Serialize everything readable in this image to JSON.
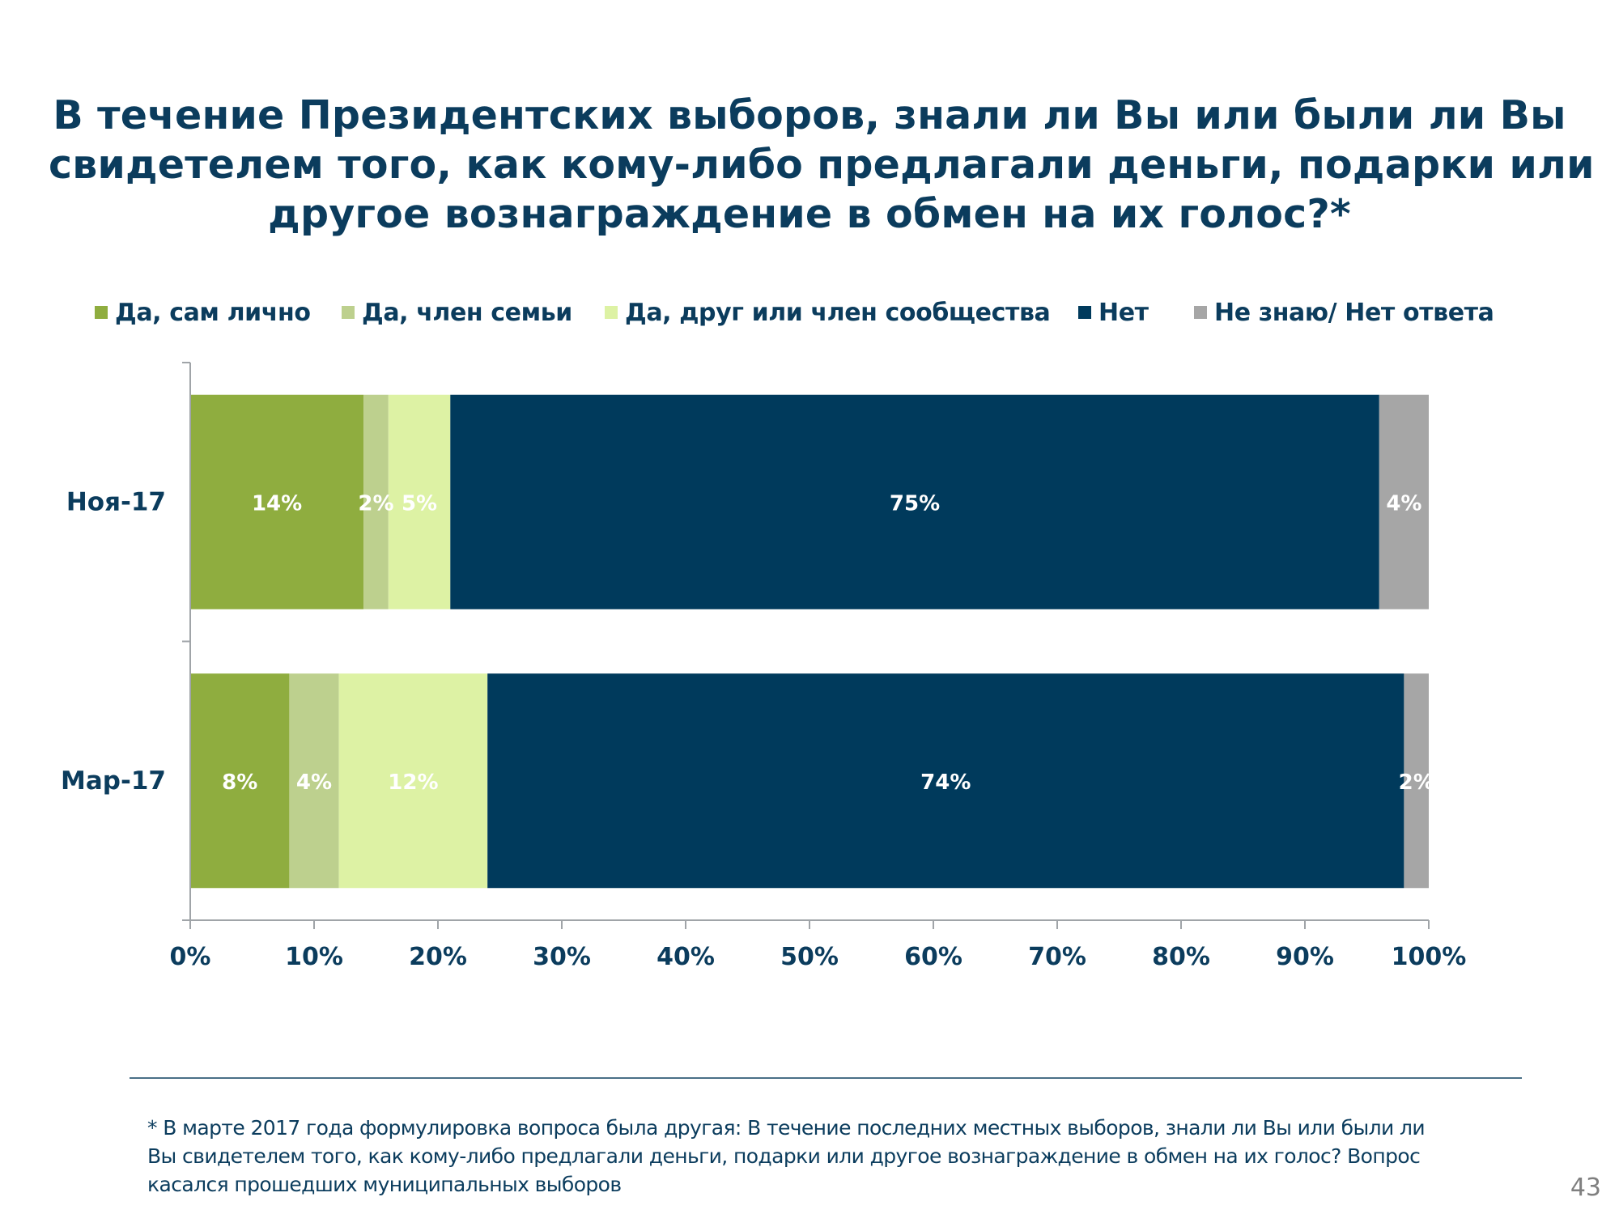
{
  "slide": {
    "title_lines": [
      "В течение Президентских выборов, знали ли Вы или были ли Вы",
      "свидетелем того, как кому-либо предлагали деньги, подарки или",
      "другое вознаграждение в обмен на их голос?*"
    ],
    "footnote_lines": [
      "* В марте 2017 года формулировка вопроса была другая: В течение последних местных выборов, знали ли Вы или были ли",
      "Вы свидетелем того, как кому-либо предлагали деньги, подарки или другое вознаграждение в обмен на их голос? Вопрос",
      "касался прошедших муниципальных выборов"
    ],
    "page_number": "43"
  },
  "colors": {
    "text": "#0b3c5d",
    "axis": "#a0a4a8",
    "label_text": "#ffffff"
  },
  "chart_data": {
    "type": "bar",
    "orientation": "horizontal",
    "stacked": true,
    "title": "В течение Президентских выборов, знали ли Вы или были ли Вы свидетелем того, как кому-либо предлагали деньги, подарки или другое вознаграждение в обмен на их голос?*",
    "xlabel": "",
    "ylabel": "",
    "xlim": [
      0,
      100
    ],
    "x_ticks": [
      "0%",
      "10%",
      "20%",
      "30%",
      "40%",
      "50%",
      "60%",
      "70%",
      "80%",
      "90%",
      "100%"
    ],
    "grid": false,
    "legend_position": "top",
    "categories": [
      "Ноя-17",
      "Мар-17"
    ],
    "series": [
      {
        "name": "Да, сам лично",
        "color": "#8fad3f",
        "values": [
          14,
          8
        ],
        "labels": [
          "14%",
          "8%"
        ]
      },
      {
        "name": "Да, член семьи",
        "color": "#bdd08e",
        "values": [
          2,
          4
        ],
        "labels": [
          "2%",
          "4%"
        ]
      },
      {
        "name": "Да, друг или член сообщества",
        "color": "#ddf2a4",
        "values": [
          5,
          12
        ],
        "labels": [
          "5%",
          "12%"
        ]
      },
      {
        "name": "Нет",
        "color": "#003a5c",
        "values": [
          75,
          74
        ],
        "labels": [
          "75%",
          "74%"
        ]
      },
      {
        "name": "Не знаю/ Нет ответа",
        "color": "#a6a6a6",
        "values": [
          4,
          2
        ],
        "labels": [
          "4%",
          "2%"
        ]
      }
    ]
  }
}
